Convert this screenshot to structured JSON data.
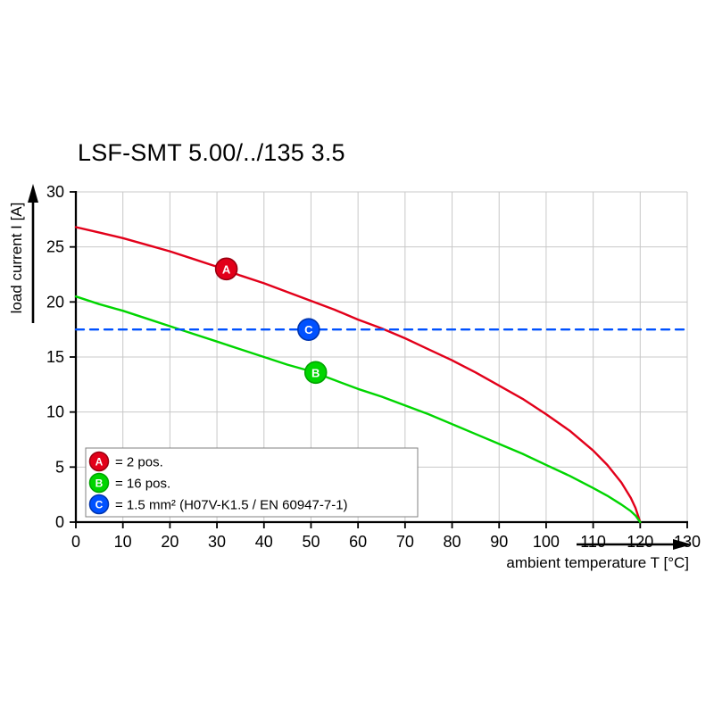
{
  "page": {
    "background": "#ffffff"
  },
  "chart_data": {
    "type": "line",
    "title": "LSF-SMT 5.00/../135 3.5",
    "xlabel": "ambient temperature T [°C]",
    "ylabel": "load current I [A]",
    "xlim": [
      0,
      130
    ],
    "ylim": [
      0,
      30
    ],
    "x_ticks": [
      0,
      10,
      20,
      30,
      40,
      50,
      60,
      70,
      80,
      90,
      100,
      110,
      120,
      130
    ],
    "y_ticks": [
      0,
      5,
      10,
      15,
      20,
      25,
      30
    ],
    "grid": true,
    "legend_position": "lower-left",
    "colors": {
      "grid": "#c8c8c8",
      "axis": "#000000",
      "legend_border": "#808080",
      "marker_text": "#ffffff"
    },
    "series": [
      {
        "name": "A",
        "label": "= 2 pos.",
        "color": "#e2001a",
        "marker_stroke": "#990010",
        "style": "solid",
        "points": [
          [
            0,
            26.8
          ],
          [
            5,
            26.3
          ],
          [
            10,
            25.8
          ],
          [
            15,
            25.2
          ],
          [
            20,
            24.6
          ],
          [
            25,
            23.9
          ],
          [
            30,
            23.2
          ],
          [
            35,
            22.4
          ],
          [
            40,
            21.7
          ],
          [
            45,
            20.9
          ],
          [
            50,
            20.1
          ],
          [
            55,
            19.3
          ],
          [
            60,
            18.4
          ],
          [
            65,
            17.6
          ],
          [
            70,
            16.7
          ],
          [
            75,
            15.7
          ],
          [
            80,
            14.7
          ],
          [
            85,
            13.6
          ],
          [
            90,
            12.4
          ],
          [
            95,
            11.2
          ],
          [
            100,
            9.8
          ],
          [
            105,
            8.3
          ],
          [
            110,
            6.5
          ],
          [
            113,
            5.2
          ],
          [
            116,
            3.6
          ],
          [
            118,
            2.2
          ],
          [
            119,
            1.3
          ],
          [
            120,
            0
          ]
        ],
        "marker": {
          "x": 32,
          "y": 23.0,
          "label": "A"
        }
      },
      {
        "name": "B",
        "label": "= 16 pos.",
        "color": "#00d500",
        "marker_stroke": "#00a400",
        "style": "solid",
        "points": [
          [
            0,
            20.5
          ],
          [
            5,
            19.8
          ],
          [
            10,
            19.2
          ],
          [
            15,
            18.5
          ],
          [
            20,
            17.8
          ],
          [
            25,
            17.1
          ],
          [
            30,
            16.4
          ],
          [
            35,
            15.7
          ],
          [
            40,
            15.0
          ],
          [
            45,
            14.3
          ],
          [
            50,
            13.7
          ],
          [
            55,
            12.9
          ],
          [
            60,
            12.1
          ],
          [
            65,
            11.4
          ],
          [
            70,
            10.6
          ],
          [
            75,
            9.8
          ],
          [
            80,
            8.9
          ],
          [
            85,
            8.0
          ],
          [
            90,
            7.1
          ],
          [
            95,
            6.2
          ],
          [
            100,
            5.2
          ],
          [
            105,
            4.2
          ],
          [
            110,
            3.1
          ],
          [
            113,
            2.4
          ],
          [
            116,
            1.6
          ],
          [
            118,
            1.0
          ],
          [
            119,
            0.6
          ],
          [
            120,
            0
          ]
        ],
        "marker": {
          "x": 51,
          "y": 13.6,
          "label": "B"
        }
      },
      {
        "name": "C",
        "label": "= 1.5 mm² (H07V-K1.5 / EN 60947-7-1)",
        "color": "#0051ff",
        "marker_stroke": "#0034ad",
        "style": "dashed",
        "points": [
          [
            0,
            17.5
          ],
          [
            130,
            17.5
          ]
        ],
        "marker": {
          "x": 49.5,
          "y": 17.5,
          "label": "C"
        }
      }
    ]
  }
}
